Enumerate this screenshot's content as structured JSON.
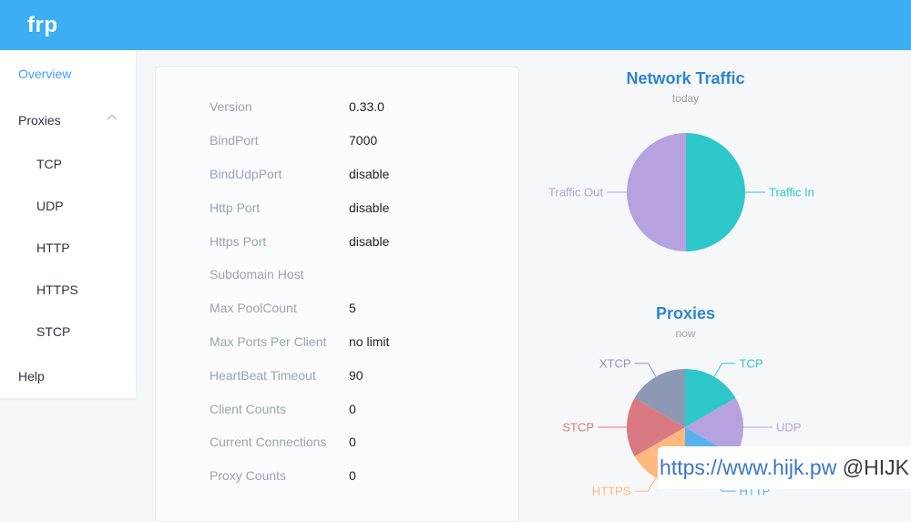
{
  "header": {
    "logo": "frp"
  },
  "sidebar": {
    "items": [
      {
        "label": "Overview",
        "level": 1,
        "active": true
      },
      {
        "label": "Proxies",
        "level": 1,
        "active": false,
        "has_submenu": true,
        "expanded": true
      },
      {
        "label": "TCP",
        "level": 2,
        "active": false
      },
      {
        "label": "UDP",
        "level": 2,
        "active": false
      },
      {
        "label": "HTTP",
        "level": 2,
        "active": false
      },
      {
        "label": "HTTPS",
        "level": 2,
        "active": false
      },
      {
        "label": "STCP",
        "level": 2,
        "active": false
      },
      {
        "label": "Help",
        "level": 1,
        "active": false
      }
    ]
  },
  "overview": {
    "rows": [
      {
        "label": "Version",
        "value": "0.33.0"
      },
      {
        "label": "BindPort",
        "value": "7000"
      },
      {
        "label": "BindUdpPort",
        "value": "disable"
      },
      {
        "label": "Http Port",
        "value": "disable"
      },
      {
        "label": "Https Port",
        "value": "disable"
      },
      {
        "label": "Subdomain Host",
        "value": ""
      },
      {
        "label": "Max PoolCount",
        "value": "5"
      },
      {
        "label": "Max Ports Per Client",
        "value": "no limit"
      },
      {
        "label": "HeartBeat Timeout",
        "value": "90"
      },
      {
        "label": "Client Counts",
        "value": "0"
      },
      {
        "label": "Current Connections",
        "value": "0"
      },
      {
        "label": "Proxy Counts",
        "value": "0"
      }
    ]
  },
  "chart_data": [
    {
      "id": "traffic",
      "type": "pie",
      "title": "Network Traffic",
      "subtitle": "today",
      "legend_position": "outside-labels",
      "slices": [
        {
          "name": "Traffic In",
          "value": 1,
          "color": "#2ec7c9"
        },
        {
          "name": "Traffic Out",
          "value": 1,
          "color": "#b6a2de"
        }
      ]
    },
    {
      "id": "proxies",
      "type": "pie",
      "title": "Proxies",
      "subtitle": "now",
      "legend_position": "outside-labels",
      "slices": [
        {
          "name": "TCP",
          "value": 1,
          "color": "#2ec7c9"
        },
        {
          "name": "UDP",
          "value": 1,
          "color": "#b6a2de"
        },
        {
          "name": "HTTP",
          "value": 1,
          "color": "#5ab1ef"
        },
        {
          "name": "HTTPS",
          "value": 1,
          "color": "#ffb980"
        },
        {
          "name": "STCP",
          "value": 1,
          "color": "#d87a80"
        },
        {
          "name": "XTCP",
          "value": 1,
          "color": "#8d98b3"
        }
      ]
    }
  ],
  "watermark": {
    "link": "https://www.hijk.pw",
    "handle": " @HIJK"
  }
}
